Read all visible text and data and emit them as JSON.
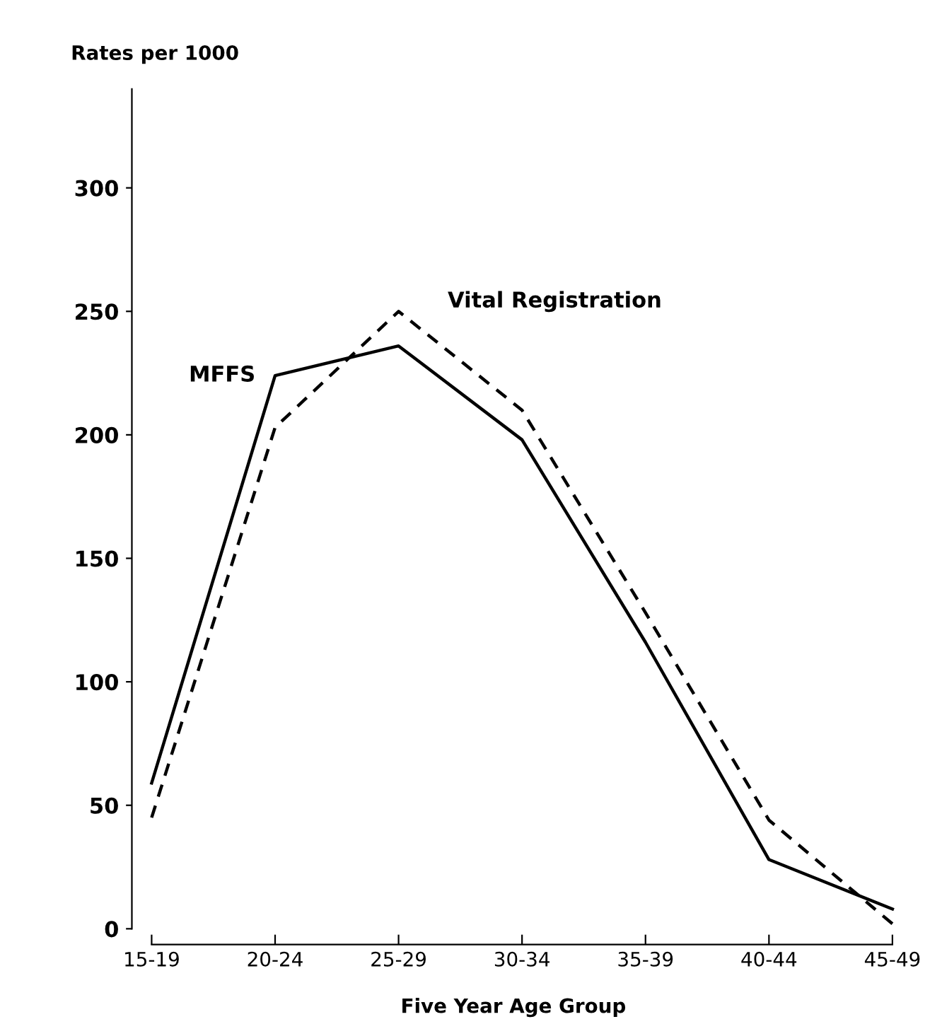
{
  "chart_data": {
    "type": "line",
    "ylabel": "Rates per 1000",
    "xlabel": "Five Year Age Group",
    "categories": [
      "15-19",
      "20-24",
      "25-29",
      "30-34",
      "35-39",
      "40-44",
      "45-49"
    ],
    "series": [
      {
        "name": "MFFS",
        "color": "#000000",
        "line_style": "solid",
        "values": [
          59,
          224,
          236,
          198,
          116,
          28,
          8
        ]
      },
      {
        "name": "Vital Registration",
        "color": "#000000",
        "line_style": "dashed",
        "values": [
          45,
          203,
          250,
          210,
          128,
          44,
          2
        ]
      }
    ],
    "ylim": [
      0,
      340
    ],
    "yticks": [
      0,
      50,
      100,
      150,
      200,
      250,
      300
    ],
    "grid": false,
    "legend": false,
    "marker": "none"
  }
}
